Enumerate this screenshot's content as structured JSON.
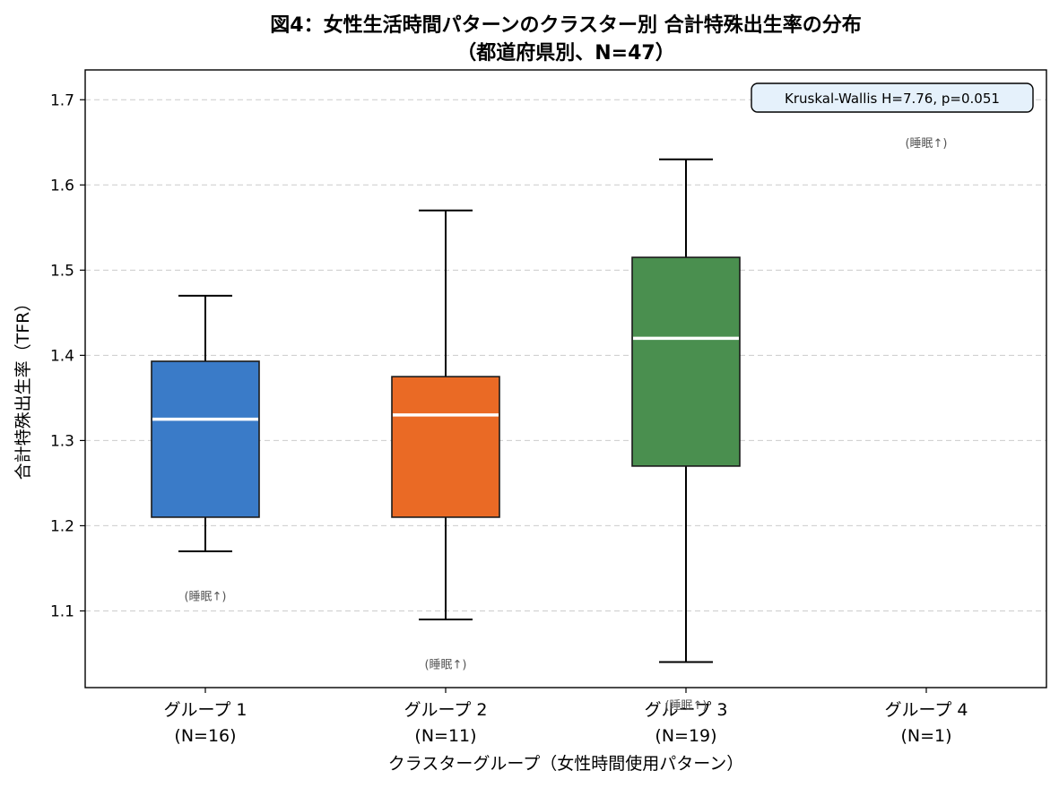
{
  "chart_data": {
    "type": "box",
    "title_line1": "図4：女性生活時間パターンのクラスター別 合計特殊出生率の分布",
    "title_line2": "（都道府県別、N=47）",
    "xlabel": "クラスターグループ（女性時間使用パターン）",
    "ylabel": "合計特殊出生率（TFR）",
    "ylim": [
      1.01,
      1.735
    ],
    "yticks": [
      "1.1",
      "1.2",
      "1.3",
      "1.4",
      "1.5",
      "1.6",
      "1.7"
    ],
    "grid": "y-dashed",
    "stat_text": "Kruskal-Wallis H=7.76, p=0.051",
    "stat_position": "top-right",
    "groups": [
      {
        "label_line1": "グループ 1",
        "label_line2": "(N=16)",
        "q1": 1.21,
        "median": 1.325,
        "q3": 1.393,
        "whisker_low": 1.17,
        "whisker_high": 1.47,
        "color": "#3a7bc8",
        "note": "(睡眠↑)",
        "note_y": 1.118
      },
      {
        "label_line1": "グループ 2",
        "label_line2": "(N=11)",
        "q1": 1.21,
        "median": 1.33,
        "q3": 1.375,
        "whisker_low": 1.09,
        "whisker_high": 1.57,
        "color": "#ea6a25",
        "note": "(睡眠↑)",
        "note_y": 1.038
      },
      {
        "label_line1": "グループ 3",
        "label_line2": "(N=19)",
        "q1": 1.27,
        "median": 1.42,
        "q3": 1.515,
        "whisker_low": 1.04,
        "whisker_high": 1.63,
        "color": "#4a8f4f",
        "note": "(睡眠↑)",
        "note_y": 0.99
      },
      {
        "label_line1": "グループ 4",
        "label_line2": "(N=1)",
        "q1": null,
        "median": null,
        "q3": null,
        "whisker_low": null,
        "whisker_high": null,
        "color": "#7f7f7f",
        "note": "(睡眠↑)",
        "note_y": 1.65
      }
    ]
  }
}
